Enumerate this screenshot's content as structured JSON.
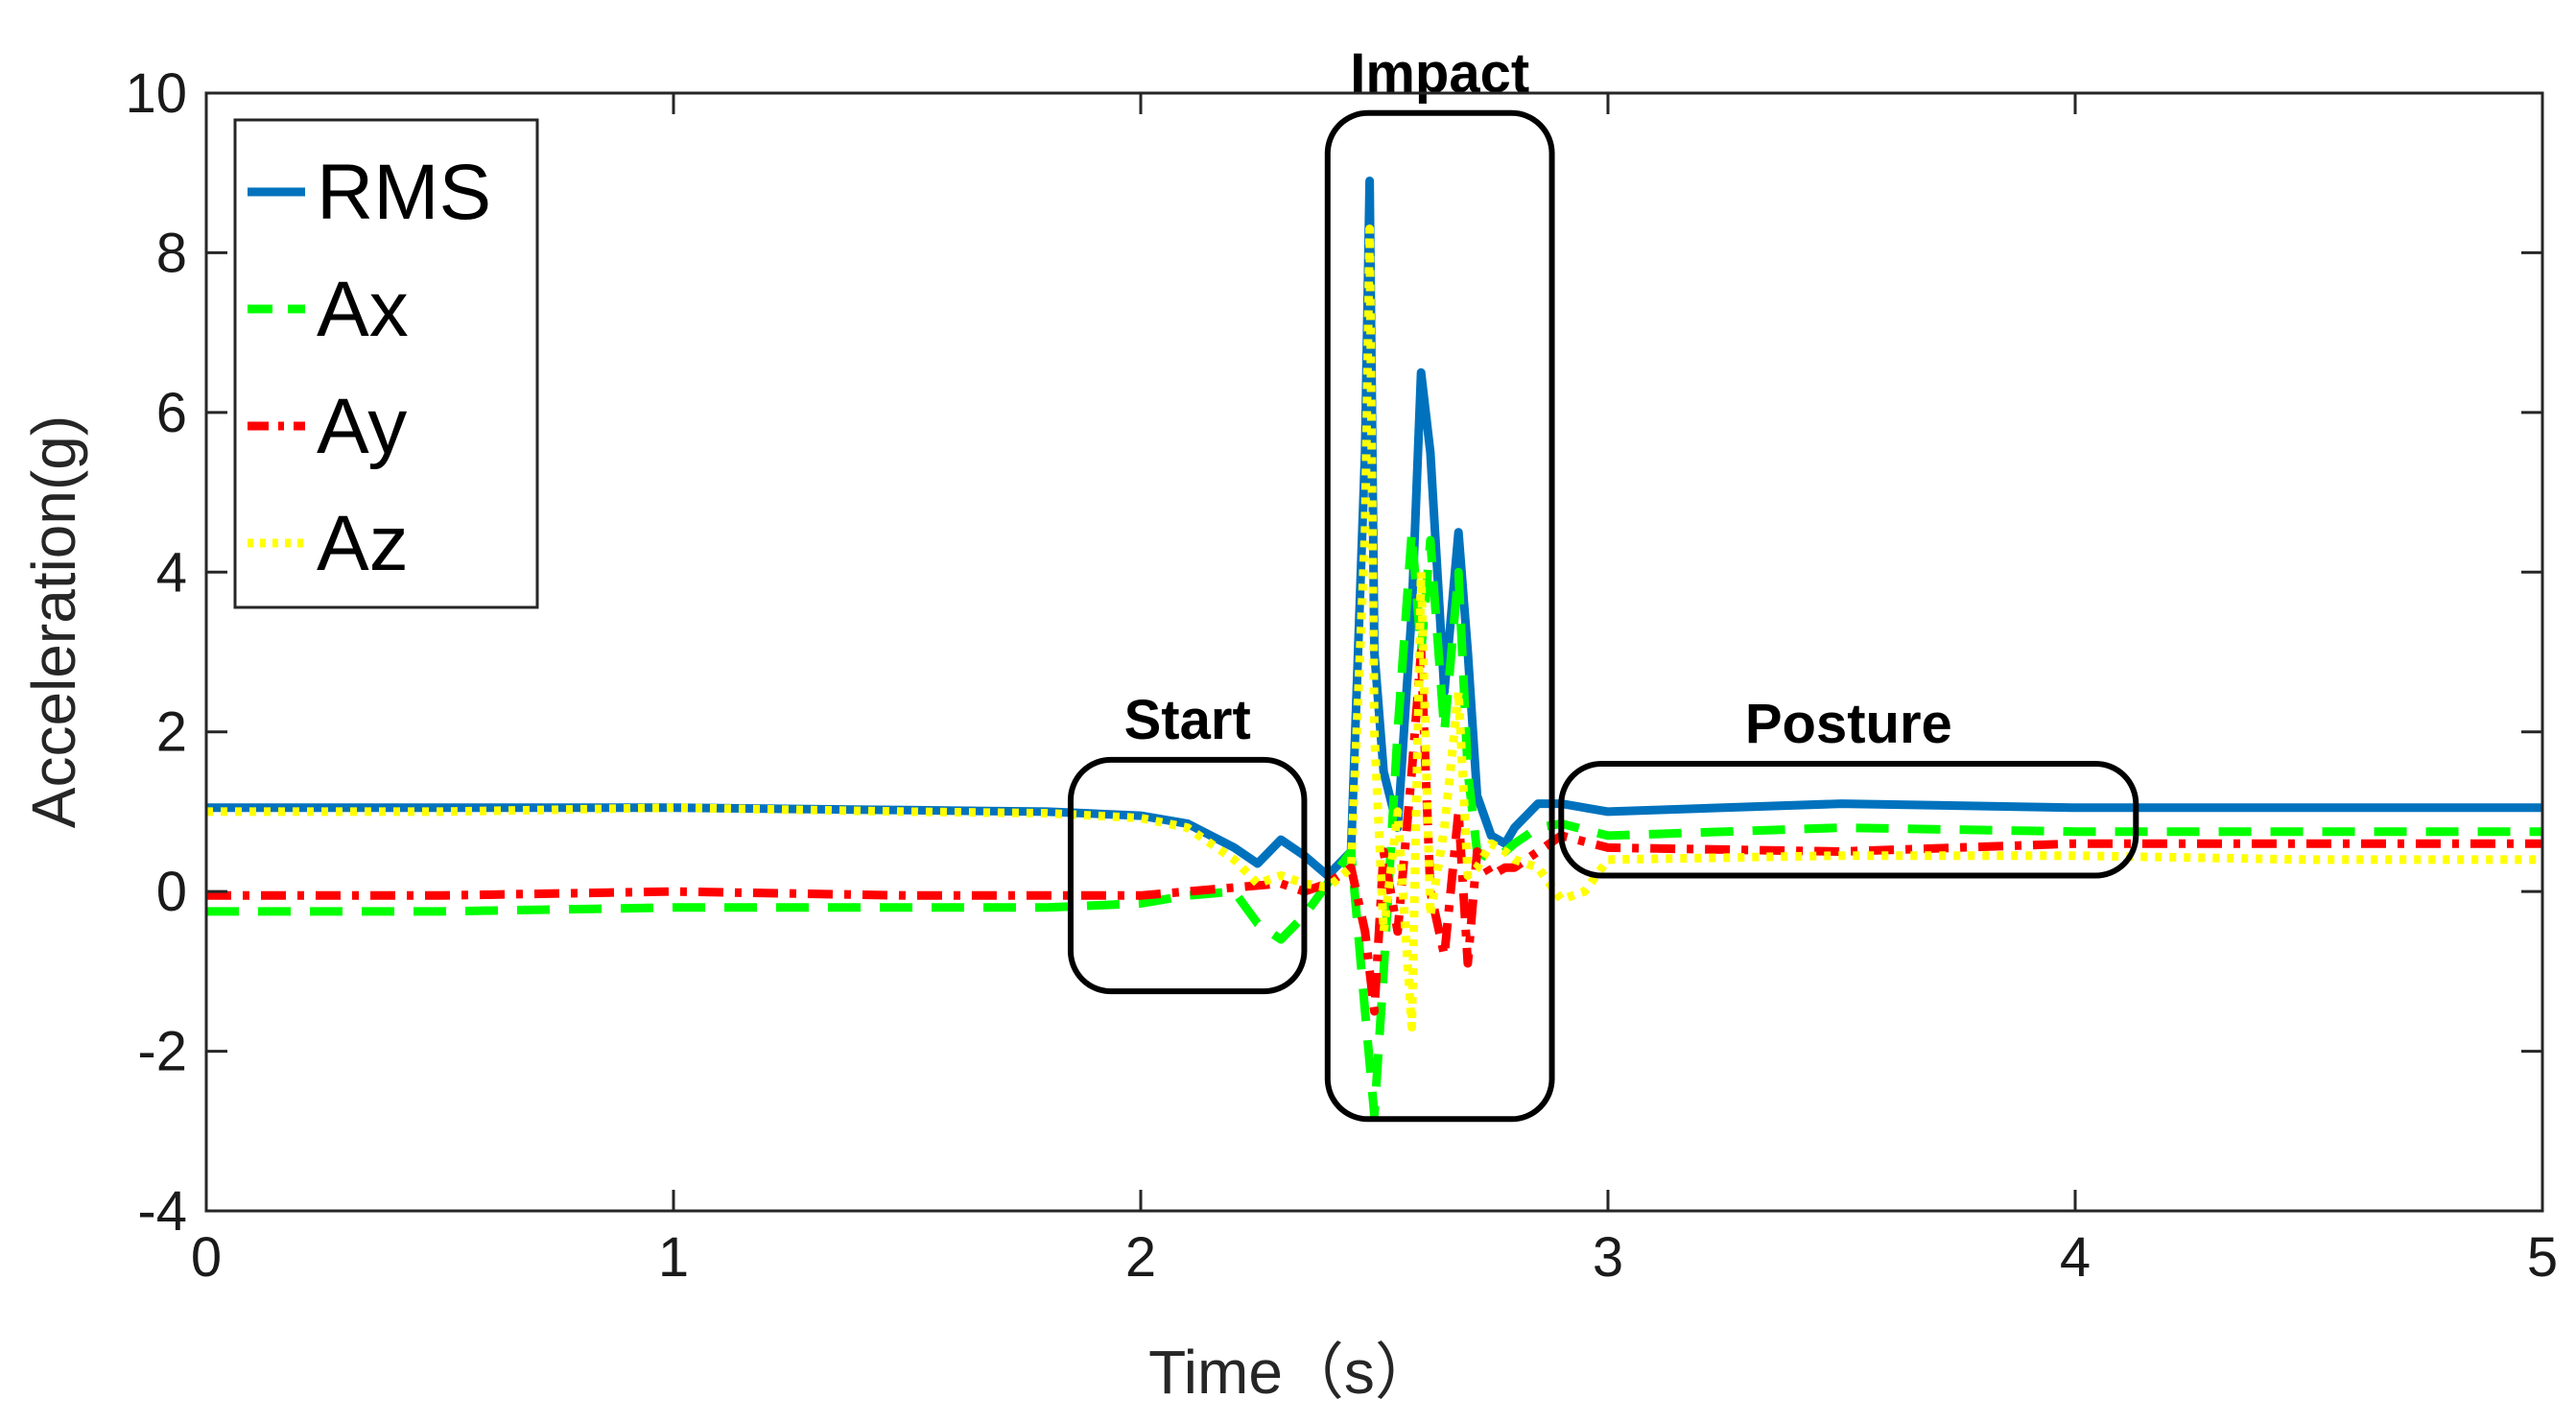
{
  "chart_data": {
    "type": "line",
    "title": "",
    "xlabel": "Time（s）",
    "ylabel": "Acceleration(g)",
    "xlim": [
      0,
      5
    ],
    "ylim": [
      -4,
      10
    ],
    "xticks": [
      0,
      1,
      2,
      3,
      4,
      5
    ],
    "xtick_labels": [
      "0",
      "1",
      "2",
      "3",
      "4",
      "5"
    ],
    "yticks": [
      -4,
      -2,
      0,
      2,
      4,
      6,
      8,
      10
    ],
    "ytick_labels": [
      "-4",
      "-2",
      "0",
      "2",
      "4",
      "6",
      "8",
      "10"
    ],
    "grid": false,
    "legend_position": "top-left",
    "series": [
      {
        "name": "RMS",
        "color": "#0072BD",
        "dash": "solid",
        "x": [
          0,
          0.5,
          1.0,
          1.5,
          1.8,
          2.0,
          2.1,
          2.2,
          2.25,
          2.3,
          2.35,
          2.4,
          2.45,
          2.48,
          2.49,
          2.5,
          2.52,
          2.55,
          2.58,
          2.6,
          2.62,
          2.65,
          2.68,
          2.7,
          2.72,
          2.75,
          2.78,
          2.8,
          2.85,
          2.9,
          3.0,
          3.5,
          4.0,
          4.5,
          5.0
        ],
        "y": [
          1.05,
          1.05,
          1.05,
          1.02,
          1.0,
          0.95,
          0.85,
          0.55,
          0.35,
          0.65,
          0.45,
          0.2,
          0.5,
          5.5,
          8.9,
          3.0,
          1.5,
          0.8,
          3.5,
          6.5,
          5.5,
          2.5,
          4.5,
          3.0,
          1.2,
          0.7,
          0.6,
          0.8,
          1.1,
          1.1,
          1.0,
          1.1,
          1.05,
          1.05,
          1.05
        ]
      },
      {
        "name": "Ax",
        "color": "#00FF00",
        "dash": "dashed",
        "x": [
          0,
          0.5,
          1.0,
          1.5,
          1.8,
          2.0,
          2.1,
          2.2,
          2.25,
          2.3,
          2.35,
          2.4,
          2.45,
          2.48,
          2.5,
          2.52,
          2.55,
          2.58,
          2.6,
          2.62,
          2.65,
          2.68,
          2.7,
          2.72,
          2.75,
          2.78,
          2.8,
          2.85,
          2.9,
          3.0,
          3.5,
          4.0,
          4.5,
          5.0
        ],
        "y": [
          -0.25,
          -0.25,
          -0.2,
          -0.2,
          -0.2,
          -0.15,
          -0.05,
          0.0,
          -0.4,
          -0.6,
          -0.3,
          0.1,
          0.5,
          -1.5,
          -2.8,
          -1.0,
          2.0,
          4.5,
          3.0,
          4.4,
          2.0,
          4.0,
          1.5,
          0.5,
          0.4,
          0.5,
          0.6,
          0.8,
          0.85,
          0.7,
          0.8,
          0.75,
          0.75,
          0.75
        ]
      },
      {
        "name": "Ay",
        "color": "#FF0000",
        "dash": "dashdot",
        "x": [
          0,
          0.5,
          1.0,
          1.5,
          1.8,
          2.0,
          2.1,
          2.2,
          2.3,
          2.35,
          2.4,
          2.45,
          2.48,
          2.5,
          2.52,
          2.55,
          2.58,
          2.6,
          2.62,
          2.65,
          2.68,
          2.7,
          2.72,
          2.75,
          2.78,
          2.8,
          2.85,
          2.9,
          3.0,
          3.5,
          4.0,
          4.5,
          5.0
        ],
        "y": [
          -0.05,
          -0.05,
          0.0,
          -0.05,
          -0.05,
          -0.05,
          0.0,
          0.05,
          0.1,
          0.0,
          0.1,
          0.3,
          -0.5,
          -1.5,
          0.5,
          -0.5,
          1.5,
          3.0,
          0.0,
          -0.8,
          1.0,
          -0.9,
          0.5,
          0.2,
          0.3,
          0.3,
          0.5,
          0.7,
          0.55,
          0.5,
          0.6,
          0.6,
          0.6
        ]
      },
      {
        "name": "Az",
        "color": "#FFFF00",
        "dash": "dotted",
        "x": [
          0,
          0.5,
          1.0,
          1.5,
          1.8,
          2.0,
          2.1,
          2.2,
          2.25,
          2.3,
          2.35,
          2.4,
          2.45,
          2.48,
          2.49,
          2.5,
          2.52,
          2.55,
          2.58,
          2.6,
          2.62,
          2.65,
          2.68,
          2.7,
          2.72,
          2.75,
          2.78,
          2.8,
          2.85,
          2.9,
          2.95,
          3.0,
          3.5,
          4.0,
          4.5,
          5.0
        ],
        "y": [
          1.0,
          1.0,
          1.05,
          1.0,
          0.98,
          0.92,
          0.8,
          0.4,
          0.1,
          0.2,
          0.1,
          0.05,
          0.3,
          4.5,
          8.3,
          2.0,
          -0.5,
          1.0,
          -1.7,
          4.0,
          -0.3,
          0.8,
          2.5,
          0.2,
          0.3,
          0.6,
          0.5,
          0.4,
          0.3,
          -0.1,
          0.0,
          0.4,
          0.45,
          0.45,
          0.4,
          0.4
        ]
      }
    ],
    "annotations": [
      {
        "label": "Start",
        "x0": 1.85,
        "x1": 2.35,
        "y0": -1.25,
        "y1": 1.65
      },
      {
        "label": "Impact",
        "x0": 2.4,
        "x1": 2.88,
        "y0": -2.85,
        "y1": 9.75
      },
      {
        "label": "Posture",
        "x0": 2.9,
        "x1": 4.13,
        "y0": 0.2,
        "y1": 1.6
      }
    ]
  }
}
